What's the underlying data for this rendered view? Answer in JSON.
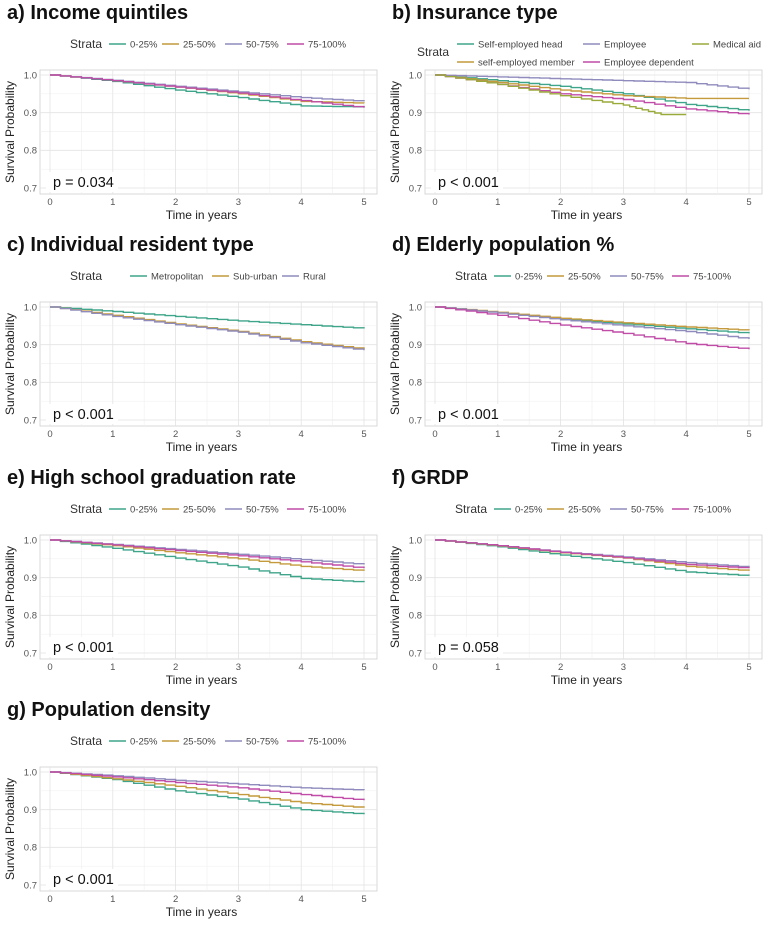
{
  "figure_title": "",
  "chart_data": [
    {
      "type": "line",
      "panel_label": "a)",
      "title": "Income quintiles",
      "legend_title": "Strata",
      "xlabel": "Time in years",
      "ylabel": "Survival Probability",
      "xlim": [
        0,
        5
      ],
      "ylim": [
        0.7,
        1.0
      ],
      "x_ticks": [
        "0",
        "1",
        "2",
        "3",
        "4",
        "5"
      ],
      "y_ticks": [
        "0.7",
        "0.8",
        "0.9",
        "1.0"
      ],
      "p_value": "p = 0.034",
      "series": [
        {
          "name": "0-25%",
          "color": "#3fa58a",
          "x": [
            0,
            1,
            2,
            3,
            4,
            5
          ],
          "values": [
            1.0,
            0.983,
            0.96,
            0.94,
            0.918,
            0.915
          ]
        },
        {
          "name": "25-50%",
          "color": "#c49a3c",
          "x": [
            0,
            1,
            2,
            3,
            4,
            5
          ],
          "values": [
            1.0,
            0.985,
            0.968,
            0.95,
            0.93,
            0.925
          ]
        },
        {
          "name": "50-75%",
          "color": "#8f8bbd",
          "x": [
            0,
            1,
            2,
            3,
            4,
            5
          ],
          "values": [
            1.0,
            0.986,
            0.97,
            0.955,
            0.94,
            0.93
          ]
        },
        {
          "name": "75-100%",
          "color": "#c04ca8",
          "x": [
            0,
            1,
            2,
            3,
            4,
            5
          ],
          "values": [
            1.0,
            0.985,
            0.968,
            0.952,
            0.932,
            0.913
          ]
        }
      ]
    },
    {
      "type": "line",
      "panel_label": "b)",
      "title": "Insurance type",
      "legend_title": "Strata",
      "xlabel": "Time in years",
      "ylabel": "Survival Probability",
      "xlim": [
        0,
        5
      ],
      "ylim": [
        0.7,
        1.0
      ],
      "x_ticks": [
        "0",
        "1",
        "2",
        "3",
        "4",
        "5"
      ],
      "y_ticks": [
        "0.7",
        "0.8",
        "0.9",
        "1.0"
      ],
      "p_value": "p < 0.001",
      "series": [
        {
          "name": "Self-employed head",
          "color": "#3fa58a",
          "x": [
            0,
            1,
            2,
            3,
            4,
            5
          ],
          "values": [
            1.0,
            0.985,
            0.97,
            0.95,
            0.922,
            0.905
          ]
        },
        {
          "name": "self-employed member",
          "color": "#c49a3c",
          "x": [
            0,
            1,
            2,
            3,
            4,
            5
          ],
          "values": [
            1.0,
            0.98,
            0.96,
            0.945,
            0.938,
            0.938
          ]
        },
        {
          "name": "Employee",
          "color": "#8f8bbd",
          "x": [
            0,
            1,
            2,
            3,
            4,
            5
          ],
          "values": [
            1.0,
            0.995,
            0.99,
            0.985,
            0.98,
            0.962
          ]
        },
        {
          "name": "Employee dependent",
          "color": "#c04ca8",
          "x": [
            0,
            1,
            2,
            3,
            4,
            5
          ],
          "values": [
            1.0,
            0.975,
            0.95,
            0.935,
            0.91,
            0.895
          ]
        },
        {
          "name": "Medical aid",
          "color": "#9aaa3a",
          "x": [
            0,
            1,
            2,
            3,
            3.6,
            4
          ],
          "values": [
            1.0,
            0.975,
            0.945,
            0.92,
            0.895,
            0.895
          ]
        }
      ]
    },
    {
      "type": "line",
      "panel_label": "c)",
      "title": "Individual resident type",
      "legend_title": "Strata",
      "xlabel": "Time in years",
      "ylabel": "Survival Probability",
      "xlim": [
        0,
        5
      ],
      "ylim": [
        0.7,
        1.0
      ],
      "x_ticks": [
        "0",
        "1",
        "2",
        "3",
        "4",
        "5"
      ],
      "y_ticks": [
        "0.7",
        "0.8",
        "0.9",
        "1.0"
      ],
      "p_value": "p < 0.001",
      "series": [
        {
          "name": "Metropolitan",
          "color": "#3fa58a",
          "x": [
            0,
            1,
            2,
            3,
            4,
            5
          ],
          "values": [
            1.0,
            0.988,
            0.975,
            0.963,
            0.953,
            0.943
          ]
        },
        {
          "name": "Sub-urban",
          "color": "#c49a3c",
          "x": [
            0,
            1,
            2,
            3,
            4,
            5
          ],
          "values": [
            1.0,
            0.978,
            0.955,
            0.935,
            0.908,
            0.888
          ]
        },
        {
          "name": "Rural",
          "color": "#8f8bbd",
          "x": [
            0,
            1,
            2,
            3,
            4,
            5
          ],
          "values": [
            1.0,
            0.975,
            0.953,
            0.933,
            0.905,
            0.885
          ]
        }
      ]
    },
    {
      "type": "line",
      "panel_label": "d)",
      "title": "Elderly population %",
      "legend_title": "Strata",
      "xlabel": "Time in years",
      "ylabel": "Survival Probability",
      "xlim": [
        0,
        5
      ],
      "ylim": [
        0.7,
        1.0
      ],
      "x_ticks": [
        "0",
        "1",
        "2",
        "3",
        "4",
        "5"
      ],
      "y_ticks": [
        "0.7",
        "0.8",
        "0.9",
        "1.0"
      ],
      "p_value": "p < 0.001",
      "series": [
        {
          "name": "0-25%",
          "color": "#3fa58a",
          "x": [
            0,
            1,
            2,
            3,
            4,
            5
          ],
          "values": [
            1.0,
            0.985,
            0.968,
            0.955,
            0.942,
            0.93
          ]
        },
        {
          "name": "25-50%",
          "color": "#c49a3c",
          "x": [
            0,
            1,
            2,
            3,
            4,
            5
          ],
          "values": [
            1.0,
            0.986,
            0.97,
            0.958,
            0.947,
            0.938
          ]
        },
        {
          "name": "50-75%",
          "color": "#8f8bbd",
          "x": [
            0,
            1,
            2,
            3,
            4,
            5
          ],
          "values": [
            1.0,
            0.984,
            0.966,
            0.95,
            0.935,
            0.915
          ]
        },
        {
          "name": "75-100%",
          "color": "#c04ca8",
          "x": [
            0,
            1,
            2,
            3,
            4,
            5
          ],
          "values": [
            1.0,
            0.978,
            0.952,
            0.93,
            0.903,
            0.888
          ]
        }
      ]
    },
    {
      "type": "line",
      "panel_label": "e)",
      "title": "High school graduation rate",
      "legend_title": "Strata",
      "xlabel": "Time in years",
      "ylabel": "Survival Probability",
      "xlim": [
        0,
        5
      ],
      "ylim": [
        0.7,
        1.0
      ],
      "x_ticks": [
        "0",
        "1",
        "2",
        "3",
        "4",
        "5"
      ],
      "y_ticks": [
        "0.7",
        "0.8",
        "0.9",
        "1.0"
      ],
      "p_value": "p < 0.001",
      "series": [
        {
          "name": "0-25%",
          "color": "#3fa58a",
          "x": [
            0,
            1,
            2,
            3,
            4,
            5
          ],
          "values": [
            1.0,
            0.978,
            0.952,
            0.928,
            0.898,
            0.888
          ]
        },
        {
          "name": "25-50%",
          "color": "#c49a3c",
          "x": [
            0,
            1,
            2,
            3,
            4,
            5
          ],
          "values": [
            1.0,
            0.985,
            0.966,
            0.95,
            0.93,
            0.918
          ]
        },
        {
          "name": "50-75%",
          "color": "#8f8bbd",
          "x": [
            0,
            1,
            2,
            3,
            4,
            5
          ],
          "values": [
            1.0,
            0.988,
            0.975,
            0.962,
            0.948,
            0.935
          ]
        },
        {
          "name": "75-100%",
          "color": "#c04ca8",
          "x": [
            0,
            1,
            2,
            3,
            4,
            5
          ],
          "values": [
            1.0,
            0.987,
            0.972,
            0.958,
            0.942,
            0.925
          ]
        }
      ]
    },
    {
      "type": "line",
      "panel_label": "f)",
      "title": "GRDP",
      "legend_title": "Strata",
      "xlabel": "Time in years",
      "ylabel": "Survival Probability",
      "xlim": [
        0,
        5
      ],
      "ylim": [
        0.7,
        1.0
      ],
      "x_ticks": [
        "0",
        "1",
        "2",
        "3",
        "4",
        "5"
      ],
      "y_ticks": [
        "0.7",
        "0.8",
        "0.9",
        "1.0"
      ],
      "p_value": "p = 0.058",
      "series": [
        {
          "name": "0-25%",
          "color": "#3fa58a",
          "x": [
            0,
            1,
            2,
            3,
            4,
            5
          ],
          "values": [
            1.0,
            0.982,
            0.96,
            0.94,
            0.915,
            0.905
          ]
        },
        {
          "name": "25-50%",
          "color": "#c49a3c",
          "x": [
            0,
            1,
            2,
            3,
            4,
            5
          ],
          "values": [
            1.0,
            0.984,
            0.966,
            0.952,
            0.93,
            0.918
          ]
        },
        {
          "name": "50-75%",
          "color": "#8f8bbd",
          "x": [
            0,
            1,
            2,
            3,
            4,
            5
          ],
          "values": [
            1.0,
            0.985,
            0.968,
            0.955,
            0.94,
            0.928
          ]
        },
        {
          "name": "75-100%",
          "color": "#c04ca8",
          "x": [
            0,
            1,
            2,
            3,
            4,
            5
          ],
          "values": [
            1.0,
            0.985,
            0.967,
            0.953,
            0.935,
            0.925
          ]
        }
      ]
    },
    {
      "type": "line",
      "panel_label": "g)",
      "title": "Population density",
      "legend_title": "Strata",
      "xlabel": "Time in years",
      "ylabel": "Survival Probability",
      "xlim": [
        0,
        5
      ],
      "ylim": [
        0.7,
        1.0
      ],
      "x_ticks": [
        "0",
        "1",
        "2",
        "3",
        "4",
        "5"
      ],
      "y_ticks": [
        "0.7",
        "0.8",
        "0.9",
        "1.0"
      ],
      "p_value": "p < 0.001",
      "series": [
        {
          "name": "0-25%",
          "color": "#3fa58a",
          "x": [
            0,
            1,
            2,
            3,
            4,
            5
          ],
          "values": [
            1.0,
            0.98,
            0.95,
            0.928,
            0.9,
            0.888
          ]
        },
        {
          "name": "25-50%",
          "color": "#c49a3c",
          "x": [
            0,
            1,
            2,
            3,
            4,
            5
          ],
          "values": [
            1.0,
            0.982,
            0.962,
            0.94,
            0.918,
            0.905
          ]
        },
        {
          "name": "50-75%",
          "color": "#8f8bbd",
          "x": [
            0,
            1,
            2,
            3,
            4,
            5
          ],
          "values": [
            1.0,
            0.99,
            0.978,
            0.968,
            0.958,
            0.952
          ]
        },
        {
          "name": "75-100%",
          "color": "#c04ca8",
          "x": [
            0,
            1,
            2,
            3,
            4,
            5
          ],
          "values": [
            1.0,
            0.987,
            0.972,
            0.958,
            0.94,
            0.925
          ]
        }
      ]
    }
  ]
}
